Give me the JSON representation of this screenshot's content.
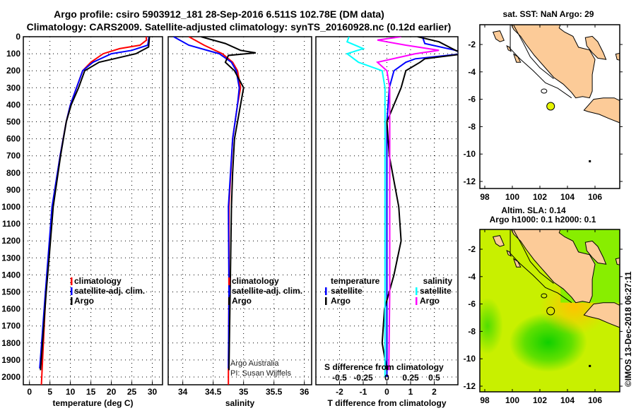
{
  "header": {
    "title1": "Argo profile: csiro 5903912_181 28-Sep-2016 6.511S 102.78E (DM data)",
    "title2": "Climatology: CARS2009. Satellite-adjusted climatology: synTS_20160928.nc (0.12d earlier)"
  },
  "colors": {
    "climatology": "#ff0000",
    "satellite": "#0000ff",
    "argo": "#000000",
    "sal_satellite": "#00ffff",
    "sal_argo": "#ff00ff",
    "land": "#fccb98",
    "float": "#e6f500"
  },
  "credits": {
    "line1": "Argo Australia",
    "line2": "PI: Susan Wijffels",
    "stamp": "©IMOS 13-Dec-2018 06:27:11"
  },
  "chart_data": [
    {
      "type": "line",
      "name": "temperature",
      "xlabel": "temperature (deg C)",
      "ylabel": "",
      "xlim": [
        -1.5,
        32.5
      ],
      "ylim": [
        2050,
        0
      ],
      "xticks": [
        0,
        5,
        10,
        15,
        20,
        25,
        30
      ],
      "yticks": [
        0,
        100,
        200,
        300,
        400,
        500,
        600,
        700,
        800,
        900,
        1000,
        1100,
        1200,
        1300,
        1400,
        1500,
        1600,
        1700,
        1800,
        1900,
        2000
      ],
      "legend": [
        "climatology",
        "satellite-adj. clim.",
        "Argo"
      ],
      "series": [
        {
          "name": "climatology",
          "color": "#ff0000",
          "depth": [
            0,
            20,
            50,
            70,
            100,
            150,
            200,
            300,
            400,
            500,
            700,
            1000,
            1500,
            2000,
            2050
          ],
          "values": [
            28.5,
            28.6,
            27,
            22,
            18,
            15,
            13,
            11.5,
            10,
            9,
            7.5,
            5.6,
            4,
            3,
            2.9
          ]
        },
        {
          "name": "satellite-adj. clim.",
          "color": "#0000ff",
          "depth": [
            0,
            50,
            80,
            100,
            150,
            200,
            300,
            400,
            500,
            700,
            1000,
            1500,
            1950
          ],
          "values": [
            29.2,
            28.9,
            25,
            20,
            15.5,
            13,
            11.5,
            10,
            9,
            7.5,
            5.5,
            3.9,
            2.5
          ]
        },
        {
          "name": "Argo",
          "color": "#000000",
          "depth": [
            0,
            60,
            100,
            150,
            200,
            300,
            400,
            500,
            700,
            1000,
            1300,
            1500,
            1800,
            1960
          ],
          "values": [
            29.3,
            29.1,
            26,
            17,
            13.5,
            12,
            10.2,
            9,
            7.6,
            5.8,
            4.8,
            4.1,
            3.2,
            2.7
          ]
        }
      ]
    },
    {
      "type": "line",
      "name": "salinity",
      "xlabel": "salinity",
      "xlim": [
        33.76,
        36.12
      ],
      "ylim": [
        2050,
        0
      ],
      "xticks": [
        34,
        34.5,
        35,
        35.5,
        36
      ],
      "legend": [
        "climatology",
        "satellite-adj. clim.",
        "Argo"
      ],
      "series": [
        {
          "name": "climatology",
          "color": "#ff0000",
          "depth": [
            0,
            50,
            100,
            150,
            200,
            300,
            400,
            600,
            1000,
            1500,
            2000,
            2050
          ],
          "values": [
            34.1,
            34.35,
            34.65,
            34.82,
            34.9,
            34.95,
            34.9,
            34.82,
            34.76,
            34.76,
            34.75,
            34.75
          ]
        },
        {
          "name": "satellite-adj. clim.",
          "color": "#0000ff",
          "depth": [
            0,
            50,
            100,
            150,
            200,
            300,
            400,
            600,
            1000,
            1500,
            1950
          ],
          "values": [
            33.85,
            34.1,
            34.6,
            34.8,
            34.88,
            34.93,
            34.9,
            34.82,
            34.75,
            34.76,
            34.75
          ]
        },
        {
          "name": "Argo",
          "color": "#000000",
          "depth": [
            0,
            40,
            80,
            95,
            110,
            150,
            200,
            300,
            400,
            600,
            800,
            1000,
            1500,
            1960
          ],
          "values": [
            34.3,
            34.7,
            34.95,
            35.2,
            34.75,
            34.7,
            34.85,
            35.0,
            34.95,
            34.85,
            34.82,
            34.8,
            34.78,
            34.76
          ]
        }
      ]
    },
    {
      "type": "line",
      "name": "difference from climatology",
      "xlabel": "T difference from climatology",
      "x2label": "S difference from climatology",
      "xlim": [
        -3,
        3
      ],
      "x2lim": [
        -0.75,
        0.75
      ],
      "ylim": [
        2050,
        0
      ],
      "xticks": [
        -2,
        -1,
        0,
        1,
        2
      ],
      "x2ticks": [
        "-0.5",
        "-0.25",
        "0",
        "0.25",
        "0.5"
      ],
      "legend_temperature": {
        "title": "temperature",
        "items": [
          "satellite",
          "Argo"
        ]
      },
      "legend_salinity": {
        "title": "salinity",
        "items": [
          "satellite",
          "Argo"
        ]
      },
      "series": [
        {
          "name": "temperature satellite",
          "axis": "T",
          "color": "#0000ff",
          "depth": [
            0,
            40,
            80,
            100,
            130,
            150,
            200,
            300,
            500,
            1000,
            1500,
            2000
          ],
          "values": [
            1.5,
            1.6,
            2.9,
            3.2,
            1.2,
            0.8,
            0.3,
            0.1,
            0,
            0,
            0,
            0
          ]
        },
        {
          "name": "temperature Argo",
          "axis": "T",
          "color": "#000000",
          "depth": [
            0,
            30,
            80,
            100,
            130,
            150,
            200,
            300,
            400,
            500,
            700,
            1000,
            1200,
            1400,
            1600,
            1800,
            1960
          ],
          "values": [
            1.3,
            2.2,
            2.9,
            3.3,
            1.6,
            1.4,
            0.8,
            0.6,
            0.3,
            0.0,
            0.1,
            0.5,
            0.6,
            0.3,
            -0.1,
            -0.2,
            0.0
          ]
        },
        {
          "name": "salinity satellite",
          "axis": "S",
          "color": "#00ffff",
          "depth": [
            0,
            30,
            70,
            100,
            150,
            200,
            300,
            1000,
            2000
          ],
          "values": [
            -0.4,
            -0.42,
            -0.25,
            -0.42,
            -0.3,
            -0.05,
            -0.02,
            -0.02,
            -0.02
          ]
        },
        {
          "name": "salinity Argo",
          "axis": "S",
          "color": "#ff00ff",
          "depth": [
            0,
            20,
            50,
            80,
            100,
            150,
            200,
            300,
            1500,
            1960
          ],
          "values": [
            0.15,
            -0.1,
            0.2,
            0.55,
            0.3,
            -0.1,
            0.0,
            0.03,
            0.03,
            0.02
          ]
        }
      ]
    },
    {
      "type": "map",
      "title": "sat. SST: NaN Argo: 29",
      "xticks": [
        98,
        100,
        102,
        104,
        106
      ],
      "yticks": [
        -2,
        -4,
        -6,
        -8,
        -10,
        -12
      ],
      "float": {
        "lon": 102.78,
        "lat": -6.511
      }
    },
    {
      "type": "map",
      "title": "Altim. SLA: 0.14",
      "subtitle": "Argo h1000: 0.1 h2000: 0.1",
      "xticks": [
        98,
        100,
        102,
        104,
        106
      ],
      "yticks": [
        -2,
        -4,
        -6,
        -8,
        -10,
        -12
      ],
      "float": {
        "lon": 102.78,
        "lat": -6.511
      }
    }
  ]
}
